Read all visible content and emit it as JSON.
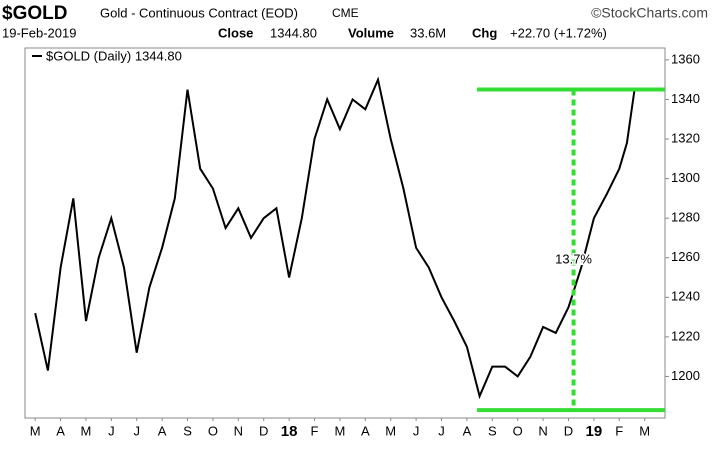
{
  "chart_data": {
    "type": "line",
    "symbol": "$GOLD",
    "title": "Gold - Continuous Contract (EOD)",
    "exchange": "CME",
    "source": "©StockCharts.com",
    "date": "19-Feb-2019",
    "close_label": "Close",
    "close": "1344.80",
    "volume_label": "Volume",
    "volume": "33.6M",
    "chg_label": "Chg",
    "chg": "+22.70 (+1.72%)",
    "xticks": [
      {
        "value": 0,
        "label": "M"
      },
      {
        "value": 1,
        "label": "A"
      },
      {
        "value": 2,
        "label": "M"
      },
      {
        "value": 3,
        "label": "J"
      },
      {
        "value": 4,
        "label": "J"
      },
      {
        "value": 5,
        "label": "A"
      },
      {
        "value": 6,
        "label": "S"
      },
      {
        "value": 7,
        "label": "O"
      },
      {
        "value": 8,
        "label": "N"
      },
      {
        "value": 9,
        "label": "D"
      },
      {
        "value": 10,
        "label": "18"
      },
      {
        "value": 11,
        "label": "F"
      },
      {
        "value": 12,
        "label": "M"
      },
      {
        "value": 13,
        "label": "A"
      },
      {
        "value": 14,
        "label": "M"
      },
      {
        "value": 15,
        "label": "J"
      },
      {
        "value": 16,
        "label": "J"
      },
      {
        "value": 17,
        "label": "A"
      },
      {
        "value": 18,
        "label": "S"
      },
      {
        "value": 19,
        "label": "O"
      },
      {
        "value": 20,
        "label": "N"
      },
      {
        "value": 21,
        "label": "D"
      },
      {
        "value": 22,
        "label": "19"
      },
      {
        "value": 23,
        "label": "F"
      },
      {
        "value": 24,
        "label": "M"
      }
    ],
    "xlim": [
      -0.4,
      24.8
    ],
    "ylim": [
      1179,
      1366
    ],
    "yticks": [
      1200,
      1220,
      1240,
      1260,
      1280,
      1300,
      1320,
      1340,
      1360
    ],
    "series": [
      {
        "name": "$GOLD (Daily) 1344.80",
        "color": "#000000",
        "x": [
          0,
          0.5,
          1,
          1.5,
          2,
          2.5,
          3,
          3.5,
          4,
          4.5,
          5,
          5.5,
          6,
          6.5,
          7,
          7.5,
          8,
          8.5,
          9,
          9.5,
          10,
          10.5,
          11,
          11.5,
          12,
          12.5,
          13,
          13.5,
          14,
          14.5,
          15,
          15.5,
          16,
          16.5,
          17,
          17.5,
          18,
          18.5,
          19,
          19.5,
          20,
          20.5,
          21,
          21.5,
          22,
          22.5,
          23,
          23.3,
          23.6
        ],
        "values": [
          1232,
          1203,
          1255,
          1290,
          1228,
          1260,
          1280,
          1255,
          1212,
          1245,
          1265,
          1290,
          1345,
          1305,
          1295,
          1275,
          1285,
          1270,
          1280,
          1285,
          1250,
          1280,
          1320,
          1340,
          1325,
          1340,
          1335,
          1350,
          1320,
          1295,
          1265,
          1255,
          1240,
          1228,
          1215,
          1190,
          1205,
          1205,
          1200,
          1210,
          1225,
          1222,
          1235,
          1255,
          1280,
          1292,
          1305,
          1318,
          1344.8
        ]
      }
    ],
    "annotation": {
      "text": "13.7%",
      "levels": [
        1345,
        1183
      ],
      "x_range": [
        17.4,
        24.8
      ],
      "vline_x": 21.2,
      "color": "#33dd33"
    }
  }
}
